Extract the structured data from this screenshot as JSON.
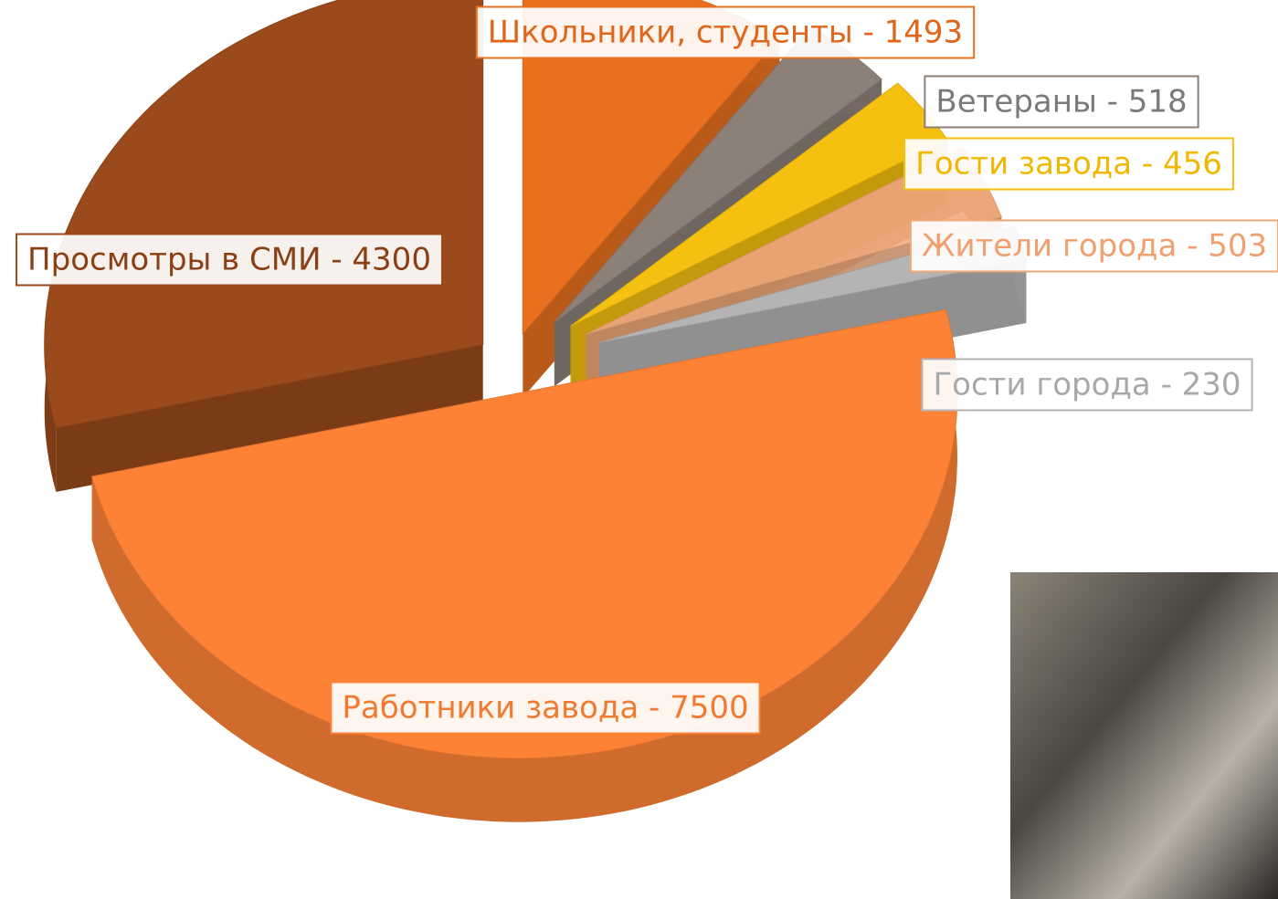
{
  "chart_data": {
    "type": "pie",
    "values": [
      1493,
      518,
      456,
      503,
      230,
      7500,
      4300
    ],
    "value_labels": [
      "Школьники, студенты - 1493",
      "Ветераны - 518",
      "Гости завода - 456",
      "Жители города - 503",
      "Гости города - 230",
      "Работники завода - 7500",
      "Просмотры в СМИ - 4300"
    ],
    "colors": [
      "#e8701e",
      "#8c8078",
      "#f5c010",
      "#f0a878",
      "#b4b4b4",
      "#fd8236",
      "#9a4a1b"
    ]
  }
}
